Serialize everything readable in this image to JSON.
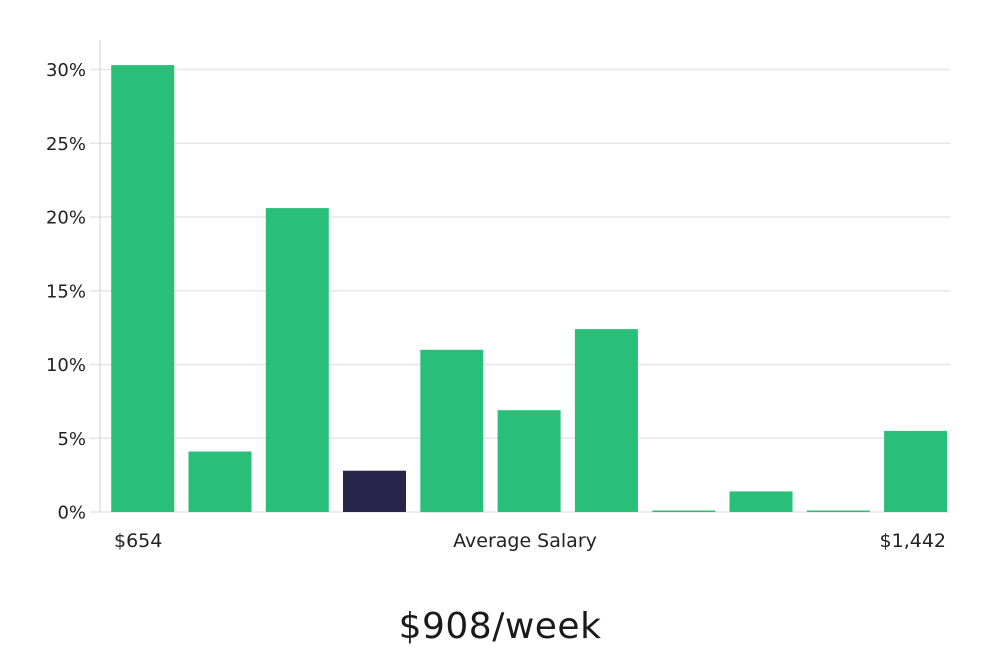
{
  "chart_data": {
    "type": "bar",
    "categories": [
      "",
      "",
      "",
      "",
      "",
      "",
      "",
      "",
      "",
      "",
      ""
    ],
    "values": [
      30.3,
      4.1,
      20.6,
      2.8,
      11.0,
      6.9,
      12.4,
      0.1,
      1.4,
      0.1,
      5.5
    ],
    "highlight_index": 3,
    "colors": {
      "bar": "#2abf79",
      "highlight": "#27254a",
      "grid": "#e6e6e6",
      "axis": "#d0d0d0"
    },
    "ylim": [
      0,
      32
    ],
    "yticks": [
      0,
      5,
      10,
      15,
      20,
      25,
      30
    ],
    "ytick_suffix": "%",
    "grid": true,
    "xlabel_left": "$654",
    "xlabel_center": "Average Salary",
    "xlabel_right": "$1,442",
    "subtitle": "$908/week"
  }
}
